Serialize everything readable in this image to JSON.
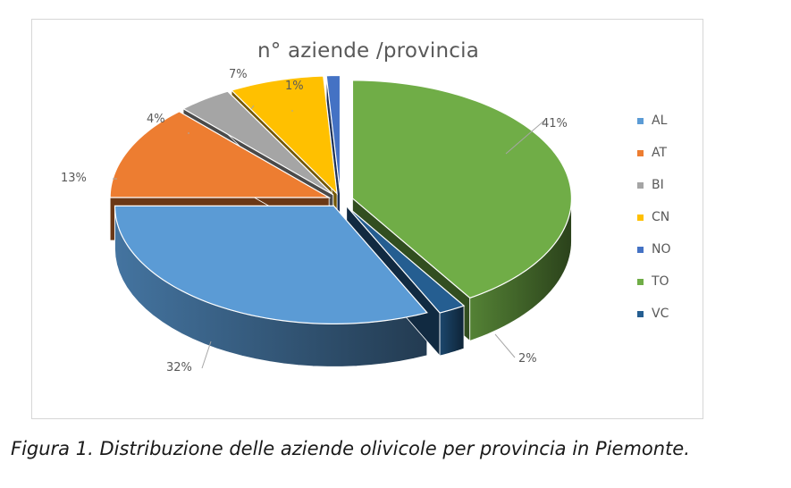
{
  "chart_data": {
    "type": "pie",
    "title": "n° aziende /provincia",
    "categories": [
      "AL",
      "AT",
      "BI",
      "CN",
      "NO",
      "TO",
      "VC"
    ],
    "values": [
      32,
      13,
      4,
      7,
      1,
      41,
      2
    ],
    "data_labels": [
      "32%",
      "13%",
      "4%",
      "7%",
      "1%",
      "41%",
      "2%"
    ],
    "colors": [
      "#5b9bd5",
      "#ed7d31",
      "#a5a5a5",
      "#ffc000",
      "#4472c4",
      "#70ad47",
      "#255e91"
    ],
    "exploded": true,
    "style": "3d",
    "legend_position": "right"
  },
  "caption": "Figura 1. Distribuzione delle aziende olivicole per provincia in Piemonte."
}
